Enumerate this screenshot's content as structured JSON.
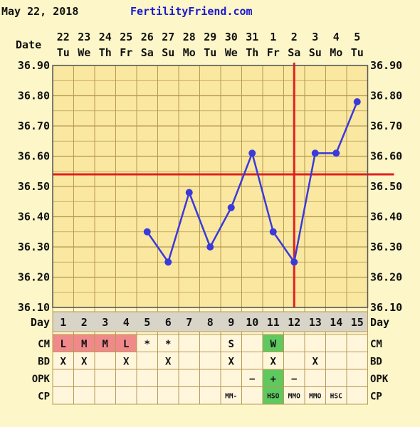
{
  "header": {
    "date": "May 22, 2018",
    "site": "FertilityFriend.com"
  },
  "colors": {
    "background": "#fdf6c8",
    "chart_bg": "#fae7a0",
    "grid": "#b89a52",
    "line": "#3a3adb",
    "ref": "#e02020",
    "site": "#1a1acc",
    "cell_bg": "#fff6dc",
    "period": "#f08a8a",
    "green": "#5fc85f"
  },
  "chart_data": {
    "type": "line",
    "title": "",
    "ylim": [
      36.1,
      36.9
    ],
    "y_ticks": [
      "36.90",
      "36.80",
      "36.70",
      "36.60",
      "36.50",
      "36.40",
      "36.30",
      "36.20",
      "36.10"
    ],
    "dates": [
      "22",
      "23",
      "24",
      "25",
      "26",
      "27",
      "28",
      "29",
      "30",
      "31",
      "1",
      "2",
      "3",
      "4",
      "5"
    ],
    "weekdays": [
      "Tu",
      "We",
      "Th",
      "Fr",
      "Sa",
      "Su",
      "Mo",
      "Tu",
      "We",
      "Th",
      "Fr",
      "Sa",
      "Su",
      "Mo",
      "Tu"
    ],
    "cycle_days": [
      "1",
      "2",
      "3",
      "4",
      "5",
      "6",
      "7",
      "8",
      "9",
      "10",
      "11",
      "12",
      "13",
      "14",
      "15"
    ],
    "temperatures": [
      null,
      null,
      null,
      null,
      36.35,
      36.25,
      36.48,
      36.3,
      36.43,
      36.61,
      36.35,
      36.25,
      36.61,
      36.61,
      36.78
    ],
    "coverline": 36.54,
    "ovulation_day": 12,
    "date_label": "Date",
    "day_label": "Day"
  },
  "rows": [
    {
      "label": "CM",
      "cells": [
        "L",
        "M",
        "M",
        "L",
        "*",
        "*",
        "",
        "",
        "S",
        "",
        "W",
        "",
        "",
        "",
        ""
      ],
      "highlight": [
        "period",
        "period",
        "period",
        "period",
        "",
        "",
        "",
        "",
        "",
        "",
        "green",
        "",
        "",
        "",
        ""
      ]
    },
    {
      "label": "BD",
      "cells": [
        "X",
        "X",
        "",
        "X",
        "",
        "X",
        "",
        "",
        "X",
        "",
        "X",
        "",
        "X",
        "",
        ""
      ],
      "highlight": [
        "",
        "",
        "",
        "",
        "",
        "",
        "",
        "",
        "",
        "",
        "",
        "",
        "",
        "",
        ""
      ]
    },
    {
      "label": "OPK",
      "cells": [
        "",
        "",
        "",
        "",
        "",
        "",
        "",
        "",
        "",
        "−",
        "+",
        "−",
        "",
        "",
        ""
      ],
      "highlight": [
        "",
        "",
        "",
        "",
        "",
        "",
        "",
        "",
        "",
        "",
        "green",
        "",
        "",
        "",
        ""
      ]
    },
    {
      "label": "CP",
      "cells": [
        "",
        "",
        "",
        "",
        "",
        "",
        "",
        "",
        "MM-",
        "",
        "HSO",
        "MMO",
        "MMO",
        "HSC",
        ""
      ],
      "highlight": [
        "",
        "",
        "",
        "",
        "",
        "",
        "",
        "",
        "",
        "",
        "green",
        "",
        "",
        "",
        ""
      ]
    }
  ]
}
